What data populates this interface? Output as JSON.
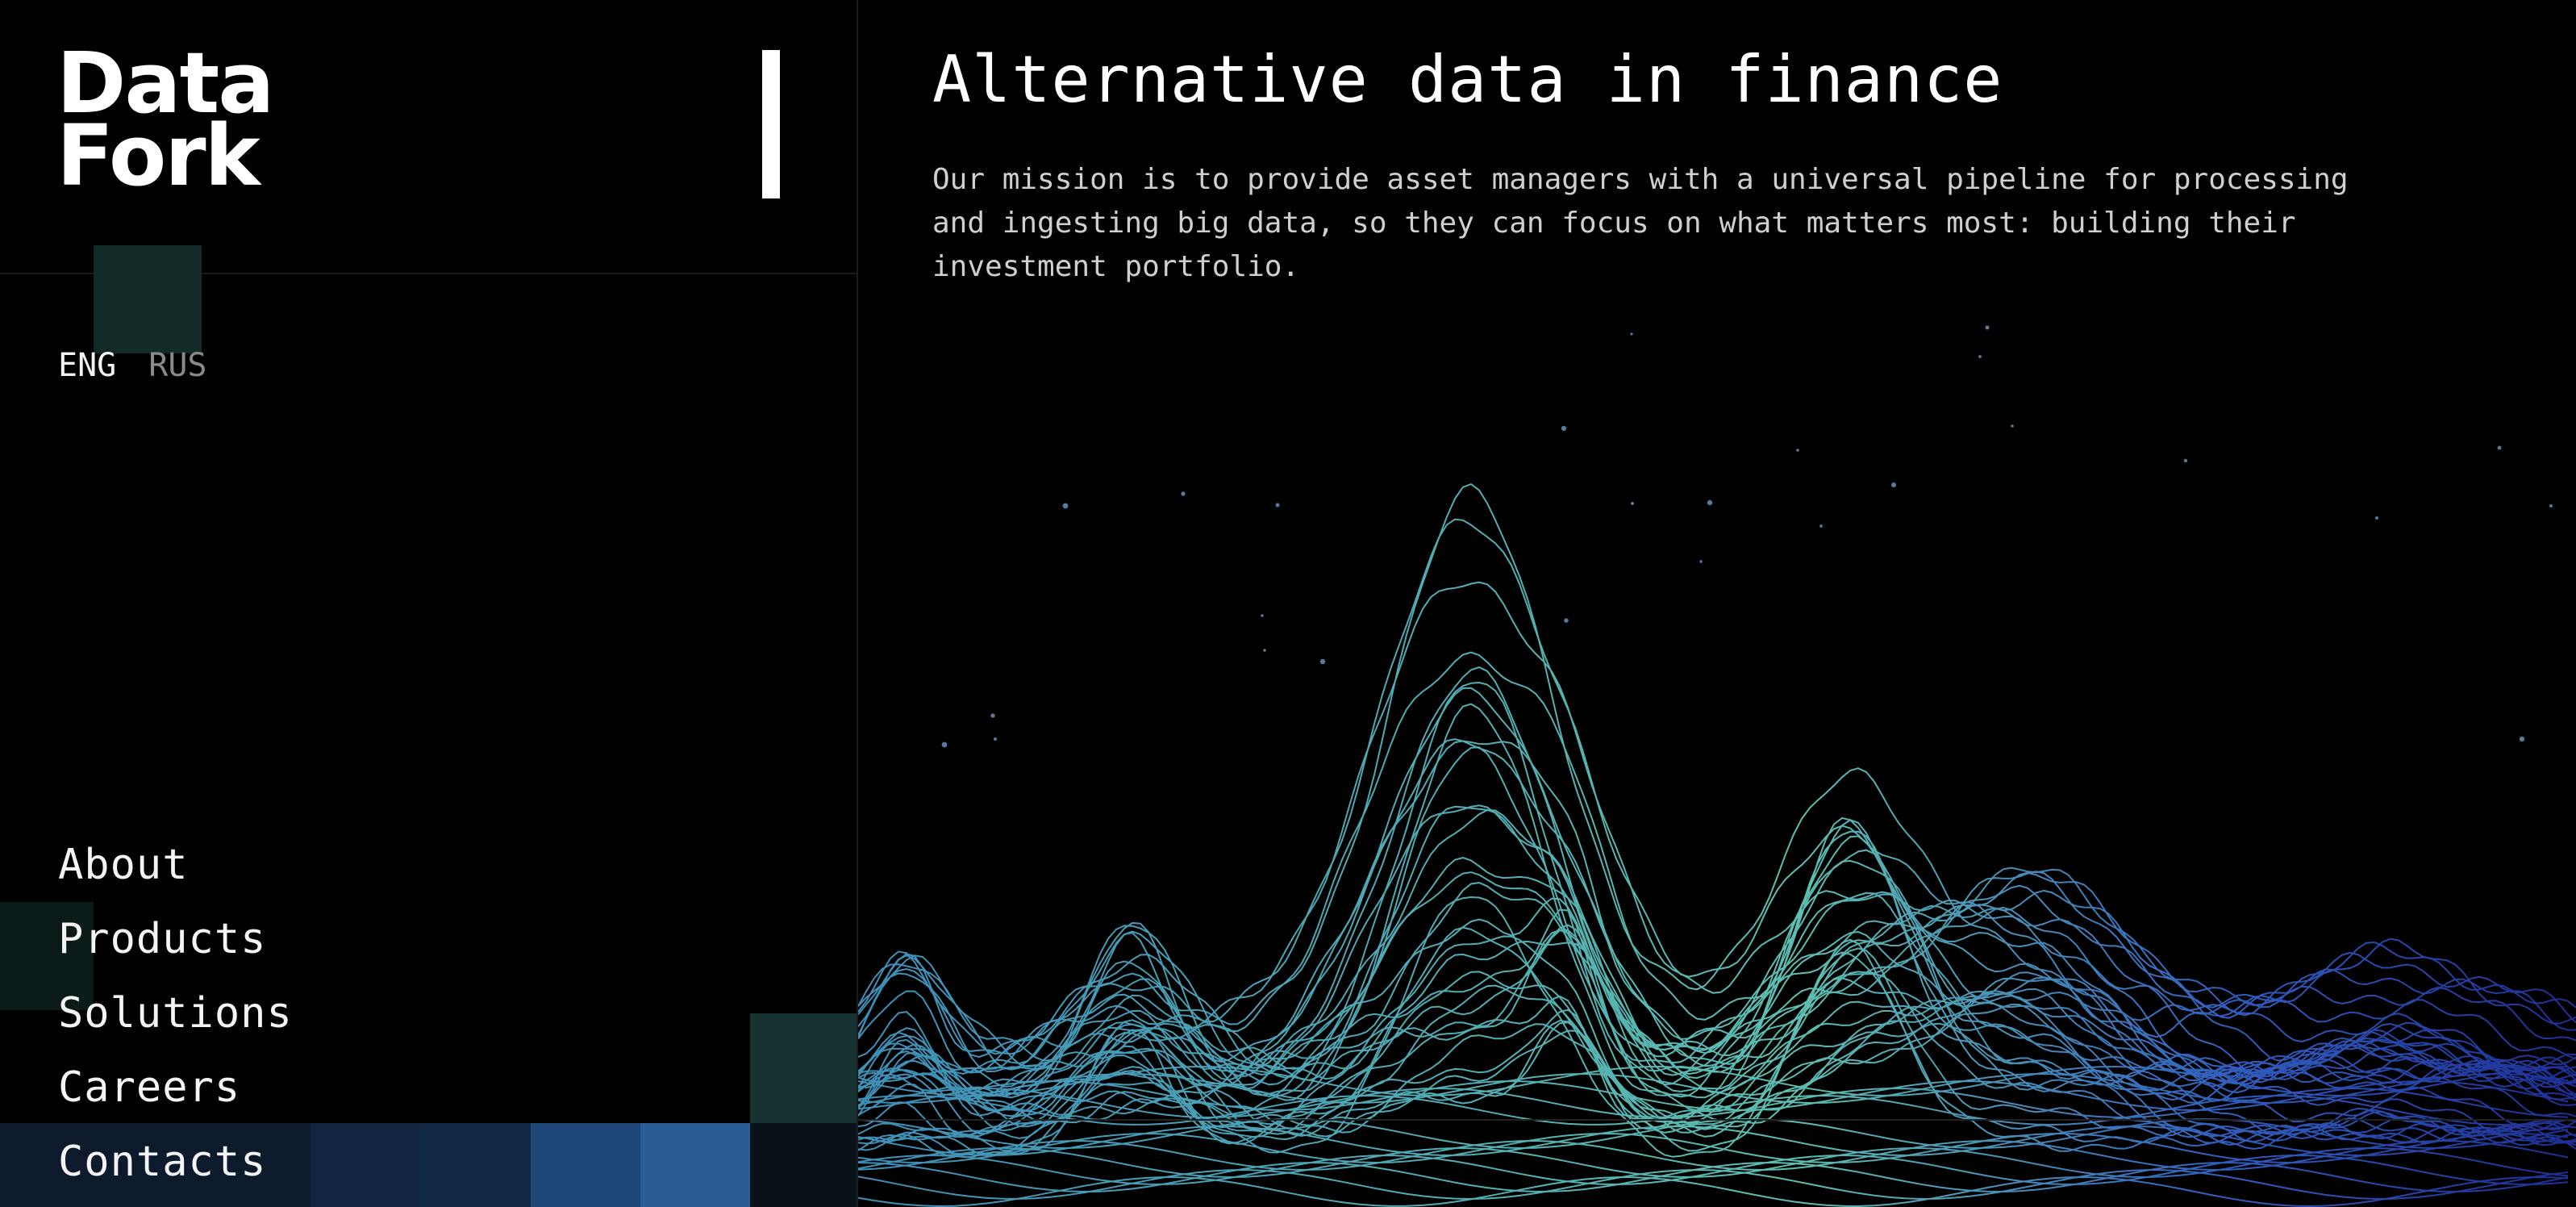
{
  "brand": {
    "line1": "Data",
    "line2": "Fork"
  },
  "language": {
    "options": [
      {
        "label": "ENG",
        "active": true
      },
      {
        "label": "RUS",
        "active": false
      }
    ]
  },
  "nav": {
    "items": [
      {
        "label": "About"
      },
      {
        "label": "Products"
      },
      {
        "label": "Solutions"
      },
      {
        "label": "Careers"
      },
      {
        "label": "Contacts"
      }
    ]
  },
  "hero": {
    "title": "Alternative data in finance",
    "mission": "Our mission is to provide asset managers with a universal pipeline for processing and ingesting big data, so they can focus on what matters most: building their investment portfolio."
  },
  "colors": {
    "background": "#000000",
    "text": "#ffffff",
    "accent_teal": "#163230",
    "accent_blue": "#2a5c95",
    "wire_cyan": "#6fe0d0",
    "wire_blue": "#2f55d8"
  }
}
